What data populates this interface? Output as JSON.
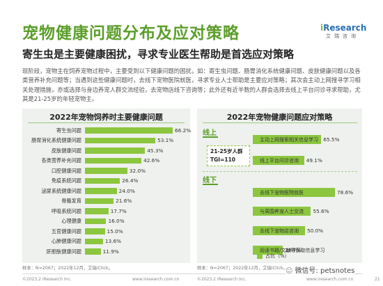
{
  "header": {
    "title": "宠物健康问题分布及应对策略",
    "subtitle": "寄生虫是主要健康困扰，寻求专业医生帮助是首选应对策略",
    "logo_prefix": "i",
    "logo_main": "Research",
    "logo_sub": "艾瑞咨询"
  },
  "paragraph": "现阶段，宠物主在饲养宠物过程中，主要受到以下健康问题的困扰，如：寄生虫问题、肠胃消化系统健康问题、皮肤健康问题以及各类营养补充问题等；当遇到这些健康问题时，去线下宠物医院就医，寻求专业人士帮助是主要应对策略；其次会主动上网搜寻学习相关处理措施，亦或选择与身边养宠人群交流经验，去宠物店线下咨询等；此外还有近半数的人群会选择去线上平台问诊寻求帮助，尤其是21-25岁的年轻宠物主。",
  "colors": {
    "title_green": "#5b9e2a",
    "bar_green": "#8cc63f",
    "panel_bg": "#eef1ee",
    "logo_blue": "#2a6fb0"
  },
  "chart_data": [
    {
      "type": "bar",
      "orientation": "horizontal",
      "title": "2022年宠物饲养时主要健康问题",
      "categories": [
        "寄生虫问题",
        "肠胃消化系统健康问题",
        "皮肤健康问题",
        "各类营养补充问题",
        "口腔健康问题",
        "免疫系统问题",
        "泌尿系统健康问题",
        "骨骼发育",
        "呼吸系统问题",
        "心理健康",
        "五官健康问题",
        "心肺健康问题",
        "肝胆肤健康问题"
      ],
      "values": [
        66.2,
        53.1,
        45.3,
        42.6,
        32.0,
        26.4,
        24.0,
        21.6,
        17.7,
        16.0,
        15.0,
        13.6,
        11.9
      ],
      "value_labels": [
        "66.2%",
        "53.1%",
        "45.3%",
        "42.6%",
        "32.0%",
        "26.4%",
        "24.0%",
        "21.6%",
        "17.7%",
        "16.0%",
        "15.0%",
        "13.6%",
        "11.9%"
      ],
      "unit": "%",
      "xlim": [
        0,
        70
      ],
      "sample_note": "样本：N=2067；2022年12月，艾瑞iClick。"
    },
    {
      "type": "bar",
      "orientation": "horizontal",
      "title": "2022年宠物健康问题应对策略",
      "groups": [
        {
          "name": "线上",
          "categories": [
            "主动上网搜索相关信息学习",
            "线上平台问诊咨询"
          ],
          "values": [
            65.5,
            49.1
          ],
          "value_labels": [
            "65.5%",
            "49.1%"
          ]
        },
        {
          "name": "线下",
          "categories": [
            "去线下宠物医院就医",
            "与周围养宠人士交流",
            "去线下宠物店咨询",
            "阅读书籍/文献等获取信息学习"
          ],
          "values": [
            78.6,
            55.6,
            50.0,
            28.7
          ],
          "value_labels": [
            "78.6%",
            "55.6%",
            "50.0%",
            "28.7%"
          ]
        }
      ],
      "legend": "占比（%）",
      "callout_line1": "21-25岁人群",
      "callout_line2": "TGI=110",
      "xlim": [
        0,
        90
      ],
      "sample_note": "样本：N=2067；2022年12月，艾瑞iClick。"
    }
  ],
  "footer": {
    "copyright_left": "©2023.2 iResearch Inc.",
    "url_left": "www.iresearch.com.cn",
    "copyright_right": "©2023.2 iResearch Inc.",
    "url_right": "www.iresearch.com.cn",
    "page_number": "21"
  },
  "watermark": {
    "text": "微信号: petsnotes",
    "icon": "wechat-icon"
  }
}
